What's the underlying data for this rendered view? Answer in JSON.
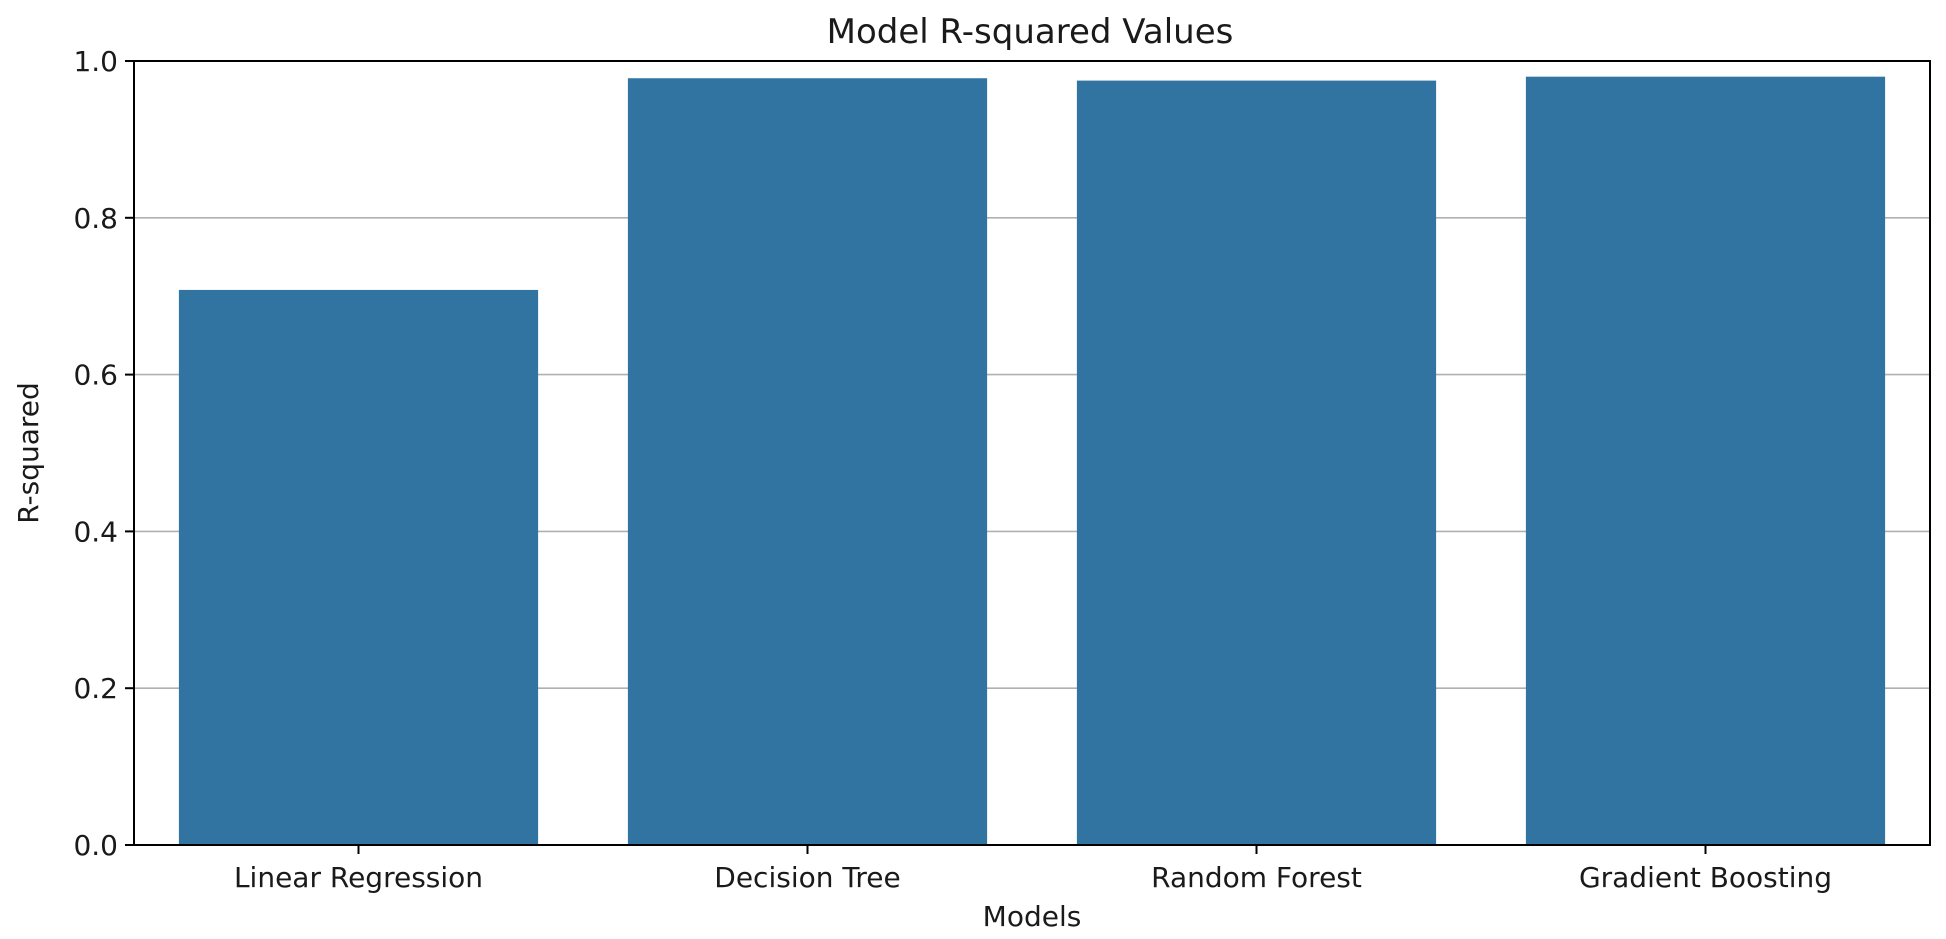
{
  "chart_data": {
    "type": "bar",
    "title": "Model R-squared Values",
    "xlabel": "Models",
    "ylabel": "R-squared",
    "categories": [
      "Linear Regression",
      "Decision Tree",
      "Random Forest",
      "Gradient Boosting"
    ],
    "values": [
      0.708,
      0.978,
      0.975,
      0.98
    ],
    "ylim": [
      0,
      1.0
    ],
    "yticks": [
      "0.0",
      "0.2",
      "0.4",
      "0.6",
      "0.8",
      "1.0"
    ],
    "grid": "y-axis horizontal lines",
    "bar_color": "#3274a1"
  }
}
